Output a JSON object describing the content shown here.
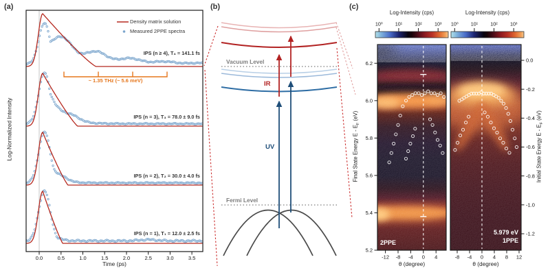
{
  "figure": {
    "panel_a": {
      "tag": "(a)",
      "y_scale_note": "log-normalized"
    },
    "panel_b": {
      "tag": "(b)",
      "vacuum_label": "Vacuum Level",
      "fermi_label": "Fermi Level",
      "ir_label": "IR",
      "uv_label": "UV"
    },
    "panel_c": {
      "tag": "(c)",
      "colorbar": {
        "title": "Log-Intensity (cps)",
        "ticks": [
          "10⁰",
          "10¹",
          "10²",
          "10³"
        ]
      }
    },
    "colors": {
      "fit_red": "#b5281e",
      "data_blue": "#7ca6cd",
      "annotation_orange": "#e5761c",
      "ir_red": "#b22222",
      "uv_blue": "#1f4e79",
      "colormap": [
        "#b2e0e8",
        "#4a6cc8",
        "#07040e",
        "#8c1a20",
        "#e06830",
        "#f7c990"
      ]
    }
  },
  "chart_data": [
    {
      "type": "line+scatter",
      "panel": "a",
      "xlabel": "Time (ps)",
      "ylabel": "Log-Normalized Intensity",
      "x_ticks": [
        0.0,
        0.5,
        1.0,
        1.5,
        2.0,
        2.5,
        3.0,
        3.5
      ],
      "x_range_ps": [
        -0.3,
        3.75
      ],
      "legend": [
        "Density matrix solution",
        "Measured 2PPE spectra"
      ],
      "traces": [
        {
          "state": "IPS (n ≥ 4)",
          "tau_fs": 141.1,
          "tau_err_fs": null,
          "label": "IPS (n ≥ 4), T₄ = 141.1 fs"
        },
        {
          "state": "IPS (n = 3)",
          "tau_fs": 78.0,
          "tau_err_fs": 9.0,
          "label": "IPS (n = 3), T₃ = 78.0 ± 9.0 fs"
        },
        {
          "state": "IPS (n = 2)",
          "tau_fs": 30.0,
          "tau_err_fs": 4.0,
          "label": "IPS (n = 2), T₂ = 30.0 ± 4.0 fs"
        },
        {
          "state": "IPS (n = 1)",
          "tau_fs": 12.0,
          "tau_err_fs": 2.5,
          "label": "IPS (n = 1), T₁ = 12.0 ± 2.5 fs"
        }
      ],
      "oscillation": {
        "freq_thz": 1.35,
        "energy_mev": 5.6,
        "label": "~ 1.35 THz (~ 5.6 meV)"
      }
    },
    {
      "type": "heatmap",
      "panel": "c-left",
      "tag": "2PPE",
      "xlabel": "θ (degree)",
      "ylabel_pre": "Final State Energy E - E",
      "ylabel_sub": "F",
      "ylabel_post": " (eV)",
      "x_ticks": [
        -12,
        -8,
        -4,
        0,
        4
      ],
      "y_ticks": [
        6.2,
        6.0,
        5.8,
        5.6,
        5.4,
        5.2
      ],
      "x_range_deg": [
        -14.5,
        7.2
      ],
      "y_range_ev": [
        5.2,
        6.3
      ],
      "intensity_scale": "log",
      "intensity_ticks_cps": [
        1,
        10,
        100,
        1000
      ],
      "marked_energies_ev": [
        6.14,
        5.38
      ],
      "dispersion_points_deg_ev": [
        [
          -6.5,
          5.97
        ],
        [
          -5.5,
          6.0
        ],
        [
          -4.5,
          6.02
        ],
        [
          -3.5,
          6.03
        ],
        [
          -2.5,
          6.04
        ],
        [
          -1.5,
          6.04
        ],
        [
          -0.5,
          6.03
        ],
        [
          0.5,
          6.04
        ],
        [
          1.5,
          6.05
        ],
        [
          2.5,
          6.04
        ],
        [
          3.5,
          6.04
        ],
        [
          4.5,
          6.03
        ],
        [
          5.5,
          6.04
        ],
        [
          6.5,
          6.02
        ],
        [
          -7.3,
          5.92
        ],
        [
          -8.0,
          5.87
        ],
        [
          -8.7,
          5.82
        ],
        [
          -9.4,
          5.77
        ],
        [
          -10.1,
          5.72
        ],
        [
          -10.8,
          5.67
        ],
        [
          -2.6,
          5.85
        ],
        [
          -3.3,
          5.81
        ],
        [
          -4.1,
          5.77
        ],
        [
          -4.8,
          5.73
        ],
        [
          -5.5,
          5.69
        ],
        [
          2.1,
          5.9
        ],
        [
          2.9,
          5.87
        ],
        [
          3.7,
          5.83
        ],
        [
          4.5,
          5.79
        ],
        [
          5.3,
          5.76
        ],
        [
          6.1,
          5.72
        ]
      ]
    },
    {
      "type": "heatmap",
      "panel": "c-right",
      "tag": "1PPE",
      "photon_energy_label": "5.979 eV",
      "xlabel": "θ (degree)",
      "ylabel_pre": "Initial State Energy E - E",
      "ylabel_sub": "F",
      "ylabel_post": " (eV)",
      "x_ticks": [
        -8,
        -4,
        0,
        4,
        8,
        12
      ],
      "y_ticks": [
        0.0,
        -0.2,
        -0.4,
        -0.6,
        -0.8,
        -1.0,
        -1.2
      ],
      "x_range_deg": [
        -10.2,
        12.7
      ],
      "y_range_ev": [
        -1.31,
        0.11
      ],
      "intensity_scale": "log",
      "intensity_ticks_cps": [
        1,
        10,
        100,
        1000
      ],
      "dispersion_points_deg_ev": [
        [
          -7.3,
          -0.28
        ],
        [
          -6.5,
          -0.27
        ],
        [
          -5.8,
          -0.26
        ],
        [
          -5.0,
          -0.25
        ],
        [
          -4.2,
          -0.24
        ],
        [
          -3.4,
          -0.23
        ],
        [
          -2.6,
          -0.23
        ],
        [
          -1.8,
          -0.23
        ],
        [
          -1.0,
          -0.23
        ],
        [
          -0.2,
          -0.22
        ],
        [
          0.6,
          -0.23
        ],
        [
          1.4,
          -0.23
        ],
        [
          2.2,
          -0.23
        ],
        [
          3.0,
          -0.23
        ],
        [
          3.8,
          -0.24
        ],
        [
          4.6,
          -0.25
        ],
        [
          5.4,
          -0.26
        ],
        [
          6.2,
          -0.28
        ],
        [
          7.0,
          -0.3
        ],
        [
          7.8,
          -0.33
        ],
        [
          8.5,
          -0.37
        ],
        [
          9.2,
          -0.42
        ],
        [
          9.9,
          -0.48
        ],
        [
          10.6,
          -0.54
        ],
        [
          11.2,
          -0.6
        ],
        [
          0.9,
          -0.36
        ],
        [
          1.9,
          -0.39
        ],
        [
          2.9,
          -0.43
        ],
        [
          3.9,
          -0.47
        ],
        [
          4.9,
          -0.5
        ],
        [
          5.9,
          -0.54
        ],
        [
          6.9,
          -0.57
        ],
        [
          7.9,
          -0.61
        ],
        [
          8.9,
          -0.64
        ],
        [
          -4.3,
          -0.39
        ],
        [
          -5.2,
          -0.43
        ],
        [
          -6.1,
          -0.48
        ],
        [
          -7.0,
          -0.52
        ],
        [
          -7.9,
          -0.57
        ],
        [
          -8.7,
          -0.62
        ]
      ]
    }
  ]
}
